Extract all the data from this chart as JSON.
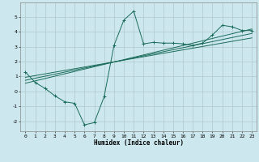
{
  "xlabel": "Humidex (Indice chaleur)",
  "ylabel": "",
  "bg_color": "#cce8ee",
  "grid_color": "#aec8cc",
  "line_color": "#1a6b5a",
  "xlim": [
    -0.5,
    23.5
  ],
  "ylim": [
    -2.7,
    6.0
  ],
  "xticks": [
    0,
    1,
    2,
    3,
    4,
    5,
    6,
    7,
    8,
    9,
    10,
    11,
    12,
    13,
    14,
    15,
    16,
    17,
    18,
    19,
    20,
    21,
    22,
    23
  ],
  "yticks": [
    -2,
    -1,
    0,
    1,
    2,
    3,
    4,
    5
  ],
  "main_x": [
    0,
    1,
    2,
    3,
    4,
    5,
    6,
    7,
    8,
    9,
    10,
    11,
    12,
    13,
    14,
    15,
    16,
    17,
    18,
    19,
    20,
    21,
    22,
    23
  ],
  "main_y": [
    1.3,
    0.6,
    0.2,
    -0.3,
    -0.7,
    -0.8,
    -2.25,
    -2.1,
    -0.35,
    3.1,
    4.8,
    5.4,
    3.2,
    3.3,
    3.25,
    3.25,
    3.2,
    3.1,
    3.25,
    3.8,
    4.45,
    4.35,
    4.1,
    4.1
  ],
  "line1_x": [
    0,
    23
  ],
  "line1_y": [
    0.55,
    4.2
  ],
  "line2_x": [
    0,
    23
  ],
  "line2_y": [
    0.75,
    3.9
  ],
  "line3_x": [
    0,
    23
  ],
  "line3_y": [
    0.95,
    3.6
  ]
}
